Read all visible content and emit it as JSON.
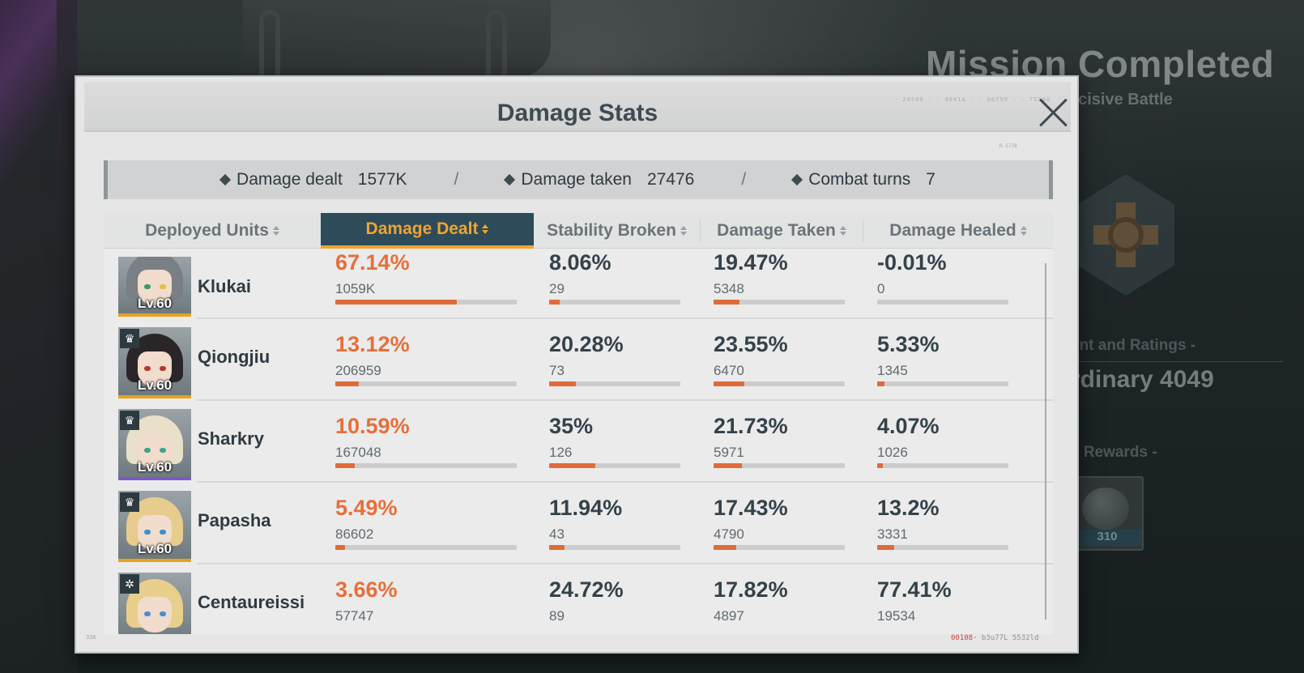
{
  "background": {
    "mission_title": "Mission Completed",
    "mission_subtitle": "ecisive Battle",
    "ratings_label": "ent and Ratings  -",
    "ratings_value": "rdinary 4049",
    "rewards_label": "e Rewards  -",
    "reward_count": "310"
  },
  "modal": {
    "title": "Damage Stats",
    "header_code": "· 28509 · · 4041A · · 66759 · · 7534A",
    "side_code": "R-5778",
    "footer_left_code": "336",
    "footer_code_red": "00108·",
    "footer_code": " b3u77L  5532ld"
  },
  "summary": {
    "damage_dealt_label": "Damage dealt",
    "damage_dealt_value": "1577K",
    "damage_taken_label": "Damage taken",
    "damage_taken_value": "27476",
    "combat_turns_label": "Combat turns",
    "combat_turns_value": "7",
    "separator": "/"
  },
  "table": {
    "columns": [
      {
        "label": "Deployed Units",
        "active": false
      },
      {
        "label": "Damage Dealt",
        "active": true
      },
      {
        "label": "Stability Broken",
        "active": false
      },
      {
        "label": "Damage Taken",
        "active": false
      },
      {
        "label": "Damage Healed",
        "active": false
      }
    ],
    "rows": [
      {
        "name": "Klukai",
        "level": "Lv.60",
        "badge": "",
        "damage_dealt": {
          "pct": "67.14%",
          "raw": "1059K",
          "fraction": 0.6714
        },
        "stability_broken": {
          "pct": "8.06%",
          "raw": "29",
          "fraction": 0.0806
        },
        "damage_taken": {
          "pct": "19.47%",
          "raw": "5348",
          "fraction": 0.1947
        },
        "damage_healed": {
          "pct": "-0.01%",
          "raw": "0",
          "fraction": 0.0
        }
      },
      {
        "name": "Qiongjiu",
        "level": "Lv.60",
        "badge": "♛",
        "damage_dealt": {
          "pct": "13.12%",
          "raw": "206959",
          "fraction": 0.1312
        },
        "stability_broken": {
          "pct": "20.28%",
          "raw": "73",
          "fraction": 0.2028
        },
        "damage_taken": {
          "pct": "23.55%",
          "raw": "6470",
          "fraction": 0.2355
        },
        "damage_healed": {
          "pct": "5.33%",
          "raw": "1345",
          "fraction": 0.0533
        }
      },
      {
        "name": "Sharkry",
        "level": "Lv.60",
        "badge": "♛",
        "damage_dealt": {
          "pct": "10.59%",
          "raw": "167048",
          "fraction": 0.1059
        },
        "stability_broken": {
          "pct": "35%",
          "raw": "126",
          "fraction": 0.35
        },
        "damage_taken": {
          "pct": "21.73%",
          "raw": "5971",
          "fraction": 0.2173
        },
        "damage_healed": {
          "pct": "4.07%",
          "raw": "1026",
          "fraction": 0.0407
        }
      },
      {
        "name": "Papasha",
        "level": "Lv.60",
        "badge": "♛",
        "damage_dealt": {
          "pct": "5.49%",
          "raw": "86602",
          "fraction": 0.0549
        },
        "stability_broken": {
          "pct": "11.94%",
          "raw": "43",
          "fraction": 0.1194
        },
        "damage_taken": {
          "pct": "17.43%",
          "raw": "4790",
          "fraction": 0.1743
        },
        "damage_healed": {
          "pct": "13.2%",
          "raw": "3331",
          "fraction": 0.132
        }
      },
      {
        "name": "Centaureissi",
        "level": "",
        "badge": "✲",
        "damage_dealt": {
          "pct": "3.66%",
          "raw": "57747",
          "fraction": 0.0366
        },
        "stability_broken": {
          "pct": "24.72%",
          "raw": "89",
          "fraction": 0.2472
        },
        "damage_taken": {
          "pct": "17.82%",
          "raw": "4897",
          "fraction": 0.1782
        },
        "damage_healed": {
          "pct": "77.41%",
          "raw": "19534",
          "fraction": 0.7741
        }
      }
    ]
  },
  "colors": {
    "accent_orange": "#e4703b",
    "active_tab_bg": "#2d4b59",
    "active_tab_text": "#f0a431",
    "rarity_gold": "#e8a21c",
    "rarity_purple": "#7b59c9"
  },
  "icons": {
    "close": "close-icon",
    "sort": "sort-arrows-icon",
    "summary_bullet": "diamond-icon"
  }
}
